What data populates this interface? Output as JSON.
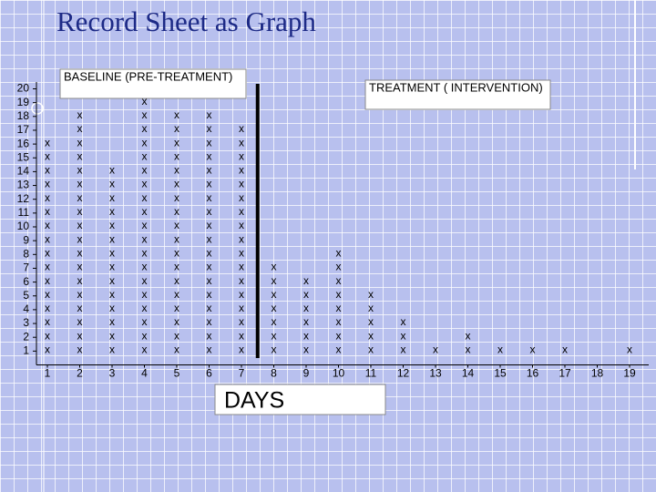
{
  "chart_data": {
    "type": "tally",
    "title": "Record Sheet  as Graph",
    "phases": [
      "BASELINE (PRE-TREATMENT)",
      "TREATMENT ( INTERVENTION)"
    ],
    "x_label": "DAYS",
    "mark_symbol": "x",
    "x": [
      1,
      2,
      3,
      4,
      5,
      6,
      7,
      8,
      9,
      10,
      11,
      12,
      13,
      14,
      15,
      16,
      17,
      18,
      19
    ],
    "values": [
      16,
      18,
      14,
      19,
      18,
      18,
      17,
      7,
      6,
      8,
      5,
      3,
      1,
      2,
      1,
      1,
      1,
      0,
      1
    ],
    "baseline_days": 7,
    "xlim": [
      0.5,
      19.5
    ],
    "ylim": [
      0,
      20
    ],
    "yticks": [
      1,
      2,
      3,
      4,
      5,
      6,
      7,
      8,
      9,
      10,
      11,
      12,
      13,
      14,
      15,
      16,
      17,
      18,
      19,
      20
    ]
  }
}
